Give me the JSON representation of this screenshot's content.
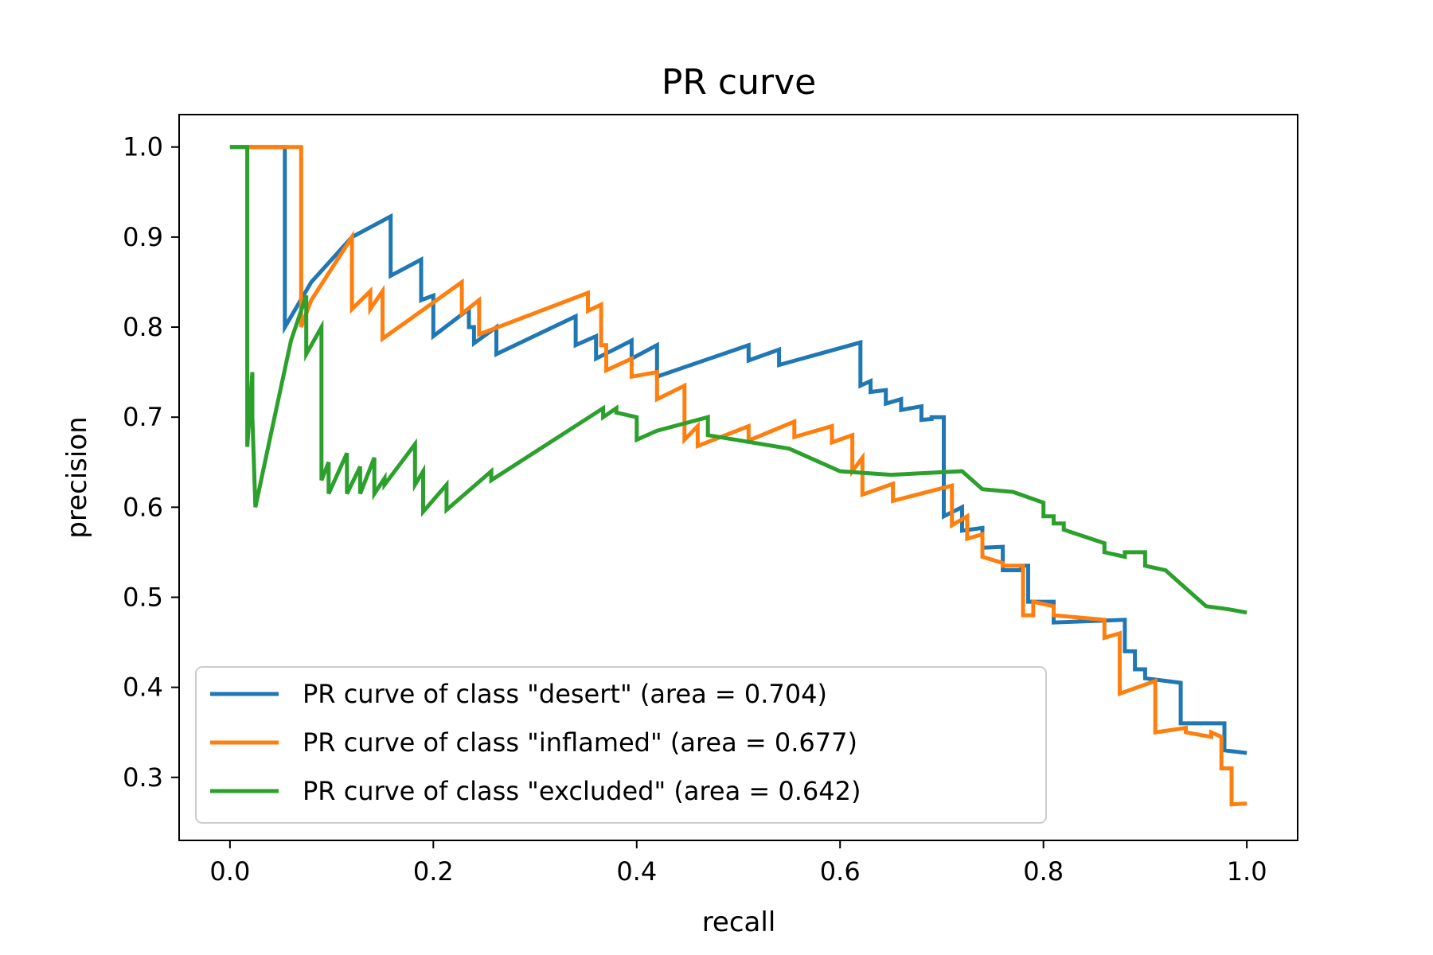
{
  "chart_data": {
    "type": "line",
    "title": "PR curve",
    "xlabel": "recall",
    "ylabel": "precision",
    "xlim": [
      -0.05,
      1.05
    ],
    "ylim": [
      0.23,
      1.036
    ],
    "xticks": [
      0.0,
      0.2,
      0.4,
      0.6,
      0.8,
      1.0
    ],
    "xtick_labels": [
      "0.0",
      "0.2",
      "0.4",
      "0.6",
      "0.8",
      "1.0"
    ],
    "yticks": [
      0.3,
      0.4,
      0.5,
      0.6,
      0.7,
      0.8,
      0.9,
      1.0
    ],
    "ytick_labels": [
      "0.3",
      "0.4",
      "0.5",
      "0.6",
      "0.7",
      "0.8",
      "0.9",
      "1.0"
    ],
    "grid": false,
    "legend_position": "lower-left",
    "series": [
      {
        "name": "PR curve of class \"desert\" (area = 0.704)",
        "color": "#1f77b4",
        "points": [
          [
            0.0,
            1.0
          ],
          [
            0.054,
            1.0
          ],
          [
            0.054,
            0.8
          ],
          [
            0.08,
            0.85
          ],
          [
            0.12,
            0.9
          ],
          [
            0.158,
            0.923
          ],
          [
            0.158,
            0.857
          ],
          [
            0.188,
            0.875
          ],
          [
            0.188,
            0.83
          ],
          [
            0.2,
            0.835
          ],
          [
            0.2,
            0.79
          ],
          [
            0.235,
            0.82
          ],
          [
            0.235,
            0.8
          ],
          [
            0.24,
            0.8
          ],
          [
            0.24,
            0.782
          ],
          [
            0.262,
            0.8
          ],
          [
            0.262,
            0.77
          ],
          [
            0.34,
            0.812
          ],
          [
            0.34,
            0.78
          ],
          [
            0.36,
            0.79
          ],
          [
            0.36,
            0.765
          ],
          [
            0.395,
            0.785
          ],
          [
            0.395,
            0.765
          ],
          [
            0.42,
            0.78
          ],
          [
            0.42,
            0.745
          ],
          [
            0.51,
            0.78
          ],
          [
            0.51,
            0.763
          ],
          [
            0.54,
            0.775
          ],
          [
            0.54,
            0.758
          ],
          [
            0.62,
            0.783
          ],
          [
            0.62,
            0.735
          ],
          [
            0.63,
            0.74
          ],
          [
            0.63,
            0.728
          ],
          [
            0.645,
            0.73
          ],
          [
            0.645,
            0.715
          ],
          [
            0.66,
            0.72
          ],
          [
            0.66,
            0.708
          ],
          [
            0.68,
            0.712
          ],
          [
            0.68,
            0.697
          ],
          [
            0.69,
            0.698
          ],
          [
            0.69,
            0.7
          ],
          [
            0.702,
            0.7
          ],
          [
            0.702,
            0.59
          ],
          [
            0.72,
            0.6
          ],
          [
            0.72,
            0.574
          ],
          [
            0.74,
            0.577
          ],
          [
            0.74,
            0.555
          ],
          [
            0.76,
            0.556
          ],
          [
            0.76,
            0.53
          ],
          [
            0.778,
            0.53
          ],
          [
            0.778,
            0.535
          ],
          [
            0.785,
            0.535
          ],
          [
            0.785,
            0.495
          ],
          [
            0.81,
            0.495
          ],
          [
            0.81,
            0.472
          ],
          [
            0.88,
            0.475
          ],
          [
            0.88,
            0.44
          ],
          [
            0.89,
            0.44
          ],
          [
            0.89,
            0.42
          ],
          [
            0.9,
            0.42
          ],
          [
            0.9,
            0.41
          ],
          [
            0.935,
            0.405
          ],
          [
            0.935,
            0.36
          ],
          [
            0.978,
            0.36
          ],
          [
            0.978,
            0.33
          ],
          [
            1.0,
            0.327
          ]
        ]
      },
      {
        "name": "PR curve of class \"inflamed\" (area = 0.677)",
        "color": "#ff7f0e",
        "points": [
          [
            0.0,
            1.0
          ],
          [
            0.07,
            1.0
          ],
          [
            0.07,
            0.8
          ],
          [
            0.08,
            0.83
          ],
          [
            0.12,
            0.9
          ],
          [
            0.12,
            0.82
          ],
          [
            0.138,
            0.84
          ],
          [
            0.138,
            0.82
          ],
          [
            0.15,
            0.84
          ],
          [
            0.15,
            0.787
          ],
          [
            0.228,
            0.85
          ],
          [
            0.228,
            0.815
          ],
          [
            0.245,
            0.83
          ],
          [
            0.245,
            0.792
          ],
          [
            0.352,
            0.838
          ],
          [
            0.352,
            0.818
          ],
          [
            0.365,
            0.825
          ],
          [
            0.365,
            0.78
          ],
          [
            0.37,
            0.78
          ],
          [
            0.37,
            0.752
          ],
          [
            0.395,
            0.765
          ],
          [
            0.395,
            0.745
          ],
          [
            0.42,
            0.75
          ],
          [
            0.42,
            0.72
          ],
          [
            0.447,
            0.735
          ],
          [
            0.447,
            0.675
          ],
          [
            0.46,
            0.69
          ],
          [
            0.46,
            0.668
          ],
          [
            0.51,
            0.69
          ],
          [
            0.51,
            0.674
          ],
          [
            0.555,
            0.695
          ],
          [
            0.555,
            0.678
          ],
          [
            0.592,
            0.69
          ],
          [
            0.592,
            0.672
          ],
          [
            0.612,
            0.68
          ],
          [
            0.612,
            0.64
          ],
          [
            0.622,
            0.655
          ],
          [
            0.622,
            0.614
          ],
          [
            0.652,
            0.626
          ],
          [
            0.652,
            0.607
          ],
          [
            0.71,
            0.624
          ],
          [
            0.71,
            0.58
          ],
          [
            0.725,
            0.59
          ],
          [
            0.725,
            0.565
          ],
          [
            0.74,
            0.57
          ],
          [
            0.74,
            0.545
          ],
          [
            0.76,
            0.538
          ],
          [
            0.76,
            0.535
          ],
          [
            0.78,
            0.535
          ],
          [
            0.78,
            0.48
          ],
          [
            0.79,
            0.48
          ],
          [
            0.79,
            0.495
          ],
          [
            0.81,
            0.49
          ],
          [
            0.81,
            0.48
          ],
          [
            0.86,
            0.475
          ],
          [
            0.86,
            0.455
          ],
          [
            0.875,
            0.46
          ],
          [
            0.875,
            0.393
          ],
          [
            0.91,
            0.407
          ],
          [
            0.91,
            0.35
          ],
          [
            0.94,
            0.355
          ],
          [
            0.94,
            0.35
          ],
          [
            0.965,
            0.345
          ],
          [
            0.965,
            0.35
          ],
          [
            0.975,
            0.345
          ],
          [
            0.975,
            0.31
          ],
          [
            0.985,
            0.31
          ],
          [
            0.985,
            0.27
          ],
          [
            1.0,
            0.271
          ]
        ]
      },
      {
        "name": "PR curve of class \"excluded\" (area = 0.642)",
        "color": "#2ca02c",
        "points": [
          [
            0.0,
            1.0
          ],
          [
            0.017,
            1.0
          ],
          [
            0.017,
            0.667
          ],
          [
            0.022,
            0.75
          ],
          [
            0.022,
            0.7
          ],
          [
            0.025,
            0.6
          ],
          [
            0.04,
            0.68
          ],
          [
            0.06,
            0.785
          ],
          [
            0.075,
            0.835
          ],
          [
            0.075,
            0.77
          ],
          [
            0.09,
            0.8
          ],
          [
            0.09,
            0.63
          ],
          [
            0.097,
            0.65
          ],
          [
            0.097,
            0.615
          ],
          [
            0.115,
            0.66
          ],
          [
            0.115,
            0.615
          ],
          [
            0.128,
            0.645
          ],
          [
            0.128,
            0.615
          ],
          [
            0.142,
            0.655
          ],
          [
            0.142,
            0.615
          ],
          [
            0.152,
            0.632
          ],
          [
            0.152,
            0.625
          ],
          [
            0.182,
            0.67
          ],
          [
            0.182,
            0.625
          ],
          [
            0.19,
            0.64
          ],
          [
            0.19,
            0.595
          ],
          [
            0.213,
            0.625
          ],
          [
            0.213,
            0.597
          ],
          [
            0.257,
            0.64
          ],
          [
            0.257,
            0.63
          ],
          [
            0.367,
            0.71
          ],
          [
            0.367,
            0.7
          ],
          [
            0.38,
            0.71
          ],
          [
            0.38,
            0.705
          ],
          [
            0.4,
            0.7
          ],
          [
            0.4,
            0.675
          ],
          [
            0.42,
            0.685
          ],
          [
            0.47,
            0.7
          ],
          [
            0.47,
            0.68
          ],
          [
            0.55,
            0.665
          ],
          [
            0.6,
            0.64
          ],
          [
            0.65,
            0.636
          ],
          [
            0.72,
            0.64
          ],
          [
            0.74,
            0.62
          ],
          [
            0.77,
            0.617
          ],
          [
            0.8,
            0.605
          ],
          [
            0.8,
            0.59
          ],
          [
            0.81,
            0.59
          ],
          [
            0.81,
            0.582
          ],
          [
            0.82,
            0.582
          ],
          [
            0.82,
            0.575
          ],
          [
            0.86,
            0.56
          ],
          [
            0.86,
            0.55
          ],
          [
            0.88,
            0.545
          ],
          [
            0.88,
            0.55
          ],
          [
            0.9,
            0.55
          ],
          [
            0.9,
            0.535
          ],
          [
            0.92,
            0.53
          ],
          [
            0.94,
            0.51
          ],
          [
            0.96,
            0.49
          ],
          [
            0.98,
            0.487
          ],
          [
            1.0,
            0.483
          ]
        ]
      }
    ]
  }
}
